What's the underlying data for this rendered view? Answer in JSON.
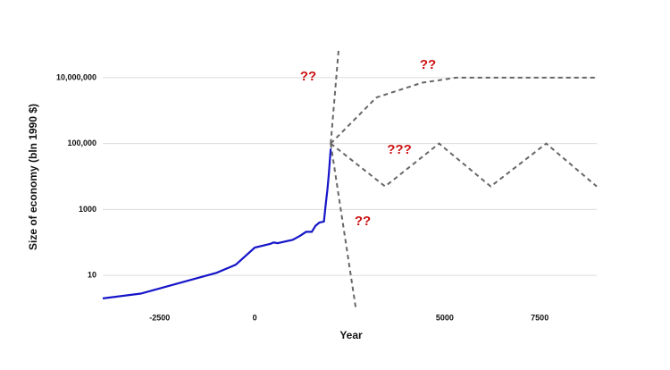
{
  "chart_data": {
    "type": "line",
    "x_label": "Year",
    "y_label": "Size of economy (bln 1990 $)",
    "log_y": true,
    "grid": true,
    "xlim": [
      -4000,
      9000
    ],
    "ylim": [
      1,
      100000000
    ],
    "xticks": [
      -2500,
      0,
      5000,
      7500
    ],
    "yticks": [
      10,
      1000,
      {
        "value": 100000,
        "label": "100,000"
      },
      {
        "value": 10000000,
        "label": "10,000,000"
      }
    ],
    "series": [
      {
        "color": "#1515c8",
        "dashed": false,
        "x": [
          -4000,
          -3000,
          -1000,
          -500,
          0,
          400,
          500,
          600,
          1000,
          1200,
          1350,
          1500,
          1600,
          1700,
          1820,
          1870,
          1913,
          1950,
          2000
        ],
        "values": [
          2,
          2.8,
          12,
          21,
          70,
          90,
          100,
          95,
          120,
          160,
          210,
          210,
          320,
          400,
          430,
          1500,
          4000,
          12000,
          70000
        ]
      },
      {
        "color": "#666666",
        "dashed": true,
        "x": [
          2000,
          2212
        ],
        "values": [
          100000,
          80000000
        ]
      },
      {
        "color": "#666666",
        "dashed": true,
        "x": [
          2000,
          2659
        ],
        "values": [
          100000,
          1
        ]
      },
      {
        "color": "#666666",
        "dashed": true,
        "x": [
          2000,
          3200,
          4400,
          5300,
          9000
        ],
        "values": [
          100000,
          2500000,
          7000000,
          10000000,
          10000000
        ]
      },
      {
        "color": "#666666",
        "dashed": true,
        "x": [
          2000,
          3430,
          4850,
          6210,
          7670,
          9000
        ],
        "values": [
          100000,
          5000,
          100000,
          5000,
          100000,
          5000
        ]
      }
    ],
    "annotations": [
      "??",
      "??",
      "???",
      "??"
    ]
  }
}
